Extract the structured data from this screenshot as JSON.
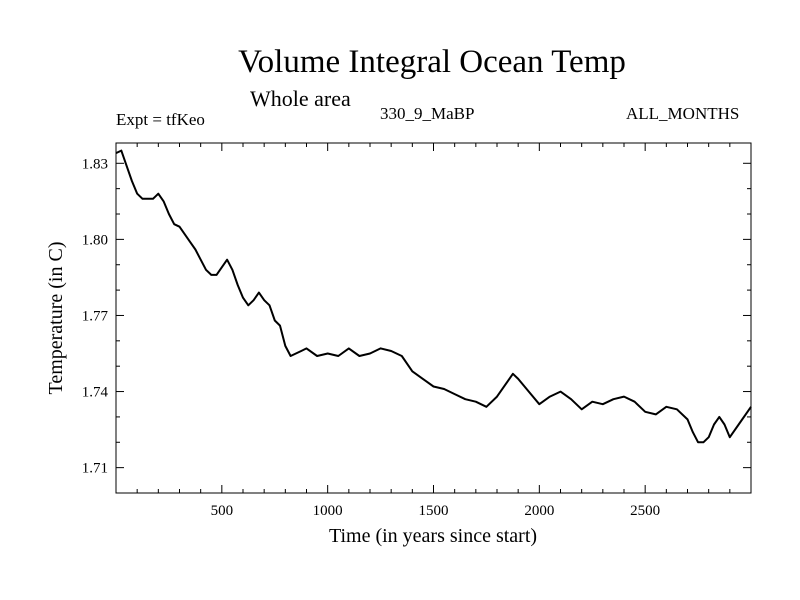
{
  "header": {
    "title": "Volume Integral Ocean Temp",
    "subtitle": "Whole area",
    "expt": "Expt = tfKeo",
    "period": "330_9_MaBP",
    "months": "ALL_MONTHS"
  },
  "chart_data": {
    "type": "line",
    "title": "Volume Integral Ocean Temp",
    "subtitle": "Whole area",
    "xlabel": "Time (in years since start)",
    "ylabel": "Temperature (in C)",
    "xlim": [
      0,
      3000
    ],
    "ylim": [
      1.7,
      1.838
    ],
    "xticks": [
      500,
      1000,
      1500,
      2000,
      2500
    ],
    "yticks": [
      1.71,
      1.74,
      1.77,
      1.8,
      1.83
    ],
    "ytick_labels": [
      "1.71",
      "1.74",
      "1.77",
      "1.80",
      "1.83"
    ],
    "grid": false,
    "series": [
      {
        "values_x": [
          0,
          25,
          50,
          75,
          100,
          125,
          150,
          175,
          200,
          225,
          250,
          275,
          300,
          325,
          350,
          375,
          400,
          425,
          450,
          475,
          500,
          525,
          550,
          575,
          600,
          625,
          650,
          675,
          700,
          725,
          750,
          775,
          800,
          825,
          850,
          875,
          900,
          950,
          1000,
          1050,
          1100,
          1150,
          1200,
          1250,
          1300,
          1350,
          1400,
          1450,
          1500,
          1550,
          1600,
          1650,
          1700,
          1750,
          1800,
          1850,
          1875,
          1900,
          1950,
          2000,
          2050,
          2100,
          2150,
          2200,
          2250,
          2300,
          2350,
          2400,
          2450,
          2500,
          2550,
          2600,
          2650,
          2700,
          2725,
          2750,
          2775,
          2800,
          2825,
          2850,
          2875,
          2900,
          2950,
          3000
        ],
        "values_y": [
          1.834,
          1.835,
          1.829,
          1.823,
          1.818,
          1.816,
          1.816,
          1.816,
          1.818,
          1.815,
          1.81,
          1.806,
          1.805,
          1.802,
          1.799,
          1.796,
          1.792,
          1.788,
          1.786,
          1.786,
          1.789,
          1.792,
          1.788,
          1.782,
          1.777,
          1.774,
          1.776,
          1.779,
          1.776,
          1.774,
          1.768,
          1.766,
          1.758,
          1.754,
          1.755,
          1.756,
          1.757,
          1.754,
          1.755,
          1.754,
          1.757,
          1.754,
          1.755,
          1.757,
          1.756,
          1.754,
          1.748,
          1.745,
          1.742,
          1.741,
          1.739,
          1.737,
          1.736,
          1.734,
          1.738,
          1.744,
          1.747,
          1.745,
          1.74,
          1.735,
          1.738,
          1.74,
          1.737,
          1.733,
          1.736,
          1.735,
          1.737,
          1.738,
          1.736,
          1.732,
          1.731,
          1.734,
          1.733,
          1.729,
          1.724,
          1.72,
          1.72,
          1.722,
          1.727,
          1.73,
          1.727,
          1.722,
          1.728,
          1.734
        ]
      }
    ]
  }
}
